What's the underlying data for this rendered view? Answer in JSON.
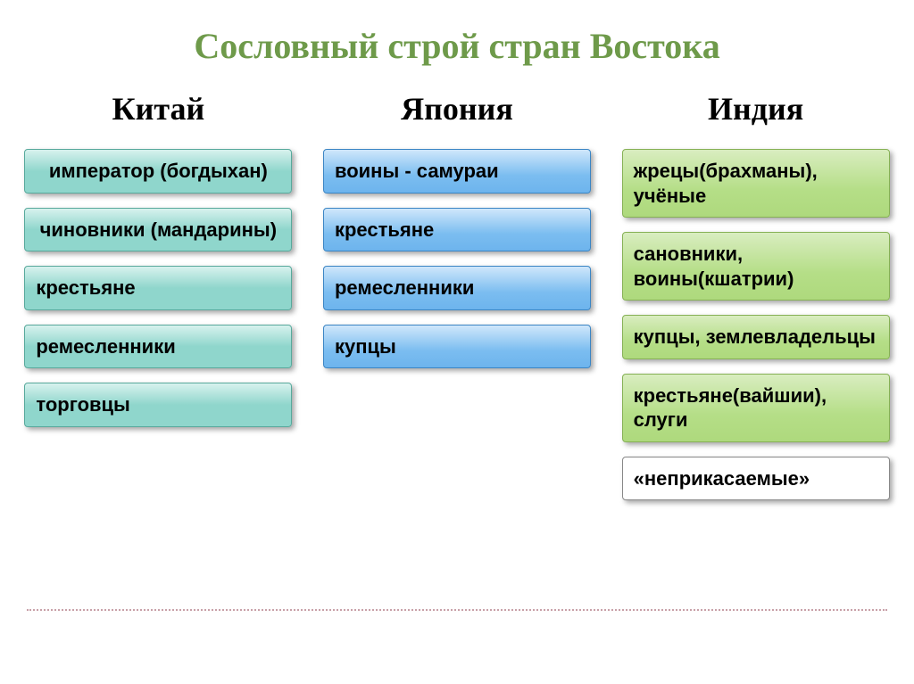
{
  "title": {
    "text": "Сословный строй стран Востока",
    "color": "#6e9a4a",
    "fontsize": 40
  },
  "columns": [
    {
      "title": "Китай",
      "items": [
        {
          "label": "император (богдыхан)",
          "style": "teal",
          "align": "center"
        },
        {
          "label": "чиновники (мандарины)",
          "style": "teal",
          "align": "center"
        },
        {
          "label": "крестьяне",
          "style": "teal",
          "align": "left"
        },
        {
          "label": "ремесленники",
          "style": "teal",
          "align": "left"
        },
        {
          "label": "торговцы",
          "style": "teal",
          "align": "left"
        }
      ]
    },
    {
      "title": "Япония",
      "items": [
        {
          "label": "воины - самураи",
          "style": "blue",
          "align": "left"
        },
        {
          "label": "крестьяне",
          "style": "blue",
          "align": "left"
        },
        {
          "label": "ремесленники",
          "style": "blue",
          "align": "left"
        },
        {
          "label": "купцы",
          "style": "blue",
          "align": "left"
        }
      ]
    },
    {
      "title": "Индия",
      "items": [
        {
          "label": "жрецы(брахманы), учёные",
          "style": "green",
          "align": "left"
        },
        {
          "label": "сановники, воины(кшатрии)",
          "style": "green",
          "align": "left"
        },
        {
          "label": "купцы, землевладельцы",
          "style": "green",
          "align": "left"
        },
        {
          "label": "крестьяне(вайшии), слуги",
          "style": "green",
          "align": "left"
        },
        {
          "label": "«неприкасаемые»",
          "style": "white",
          "align": "left"
        }
      ]
    }
  ],
  "divider_color": "#c8a0a8"
}
